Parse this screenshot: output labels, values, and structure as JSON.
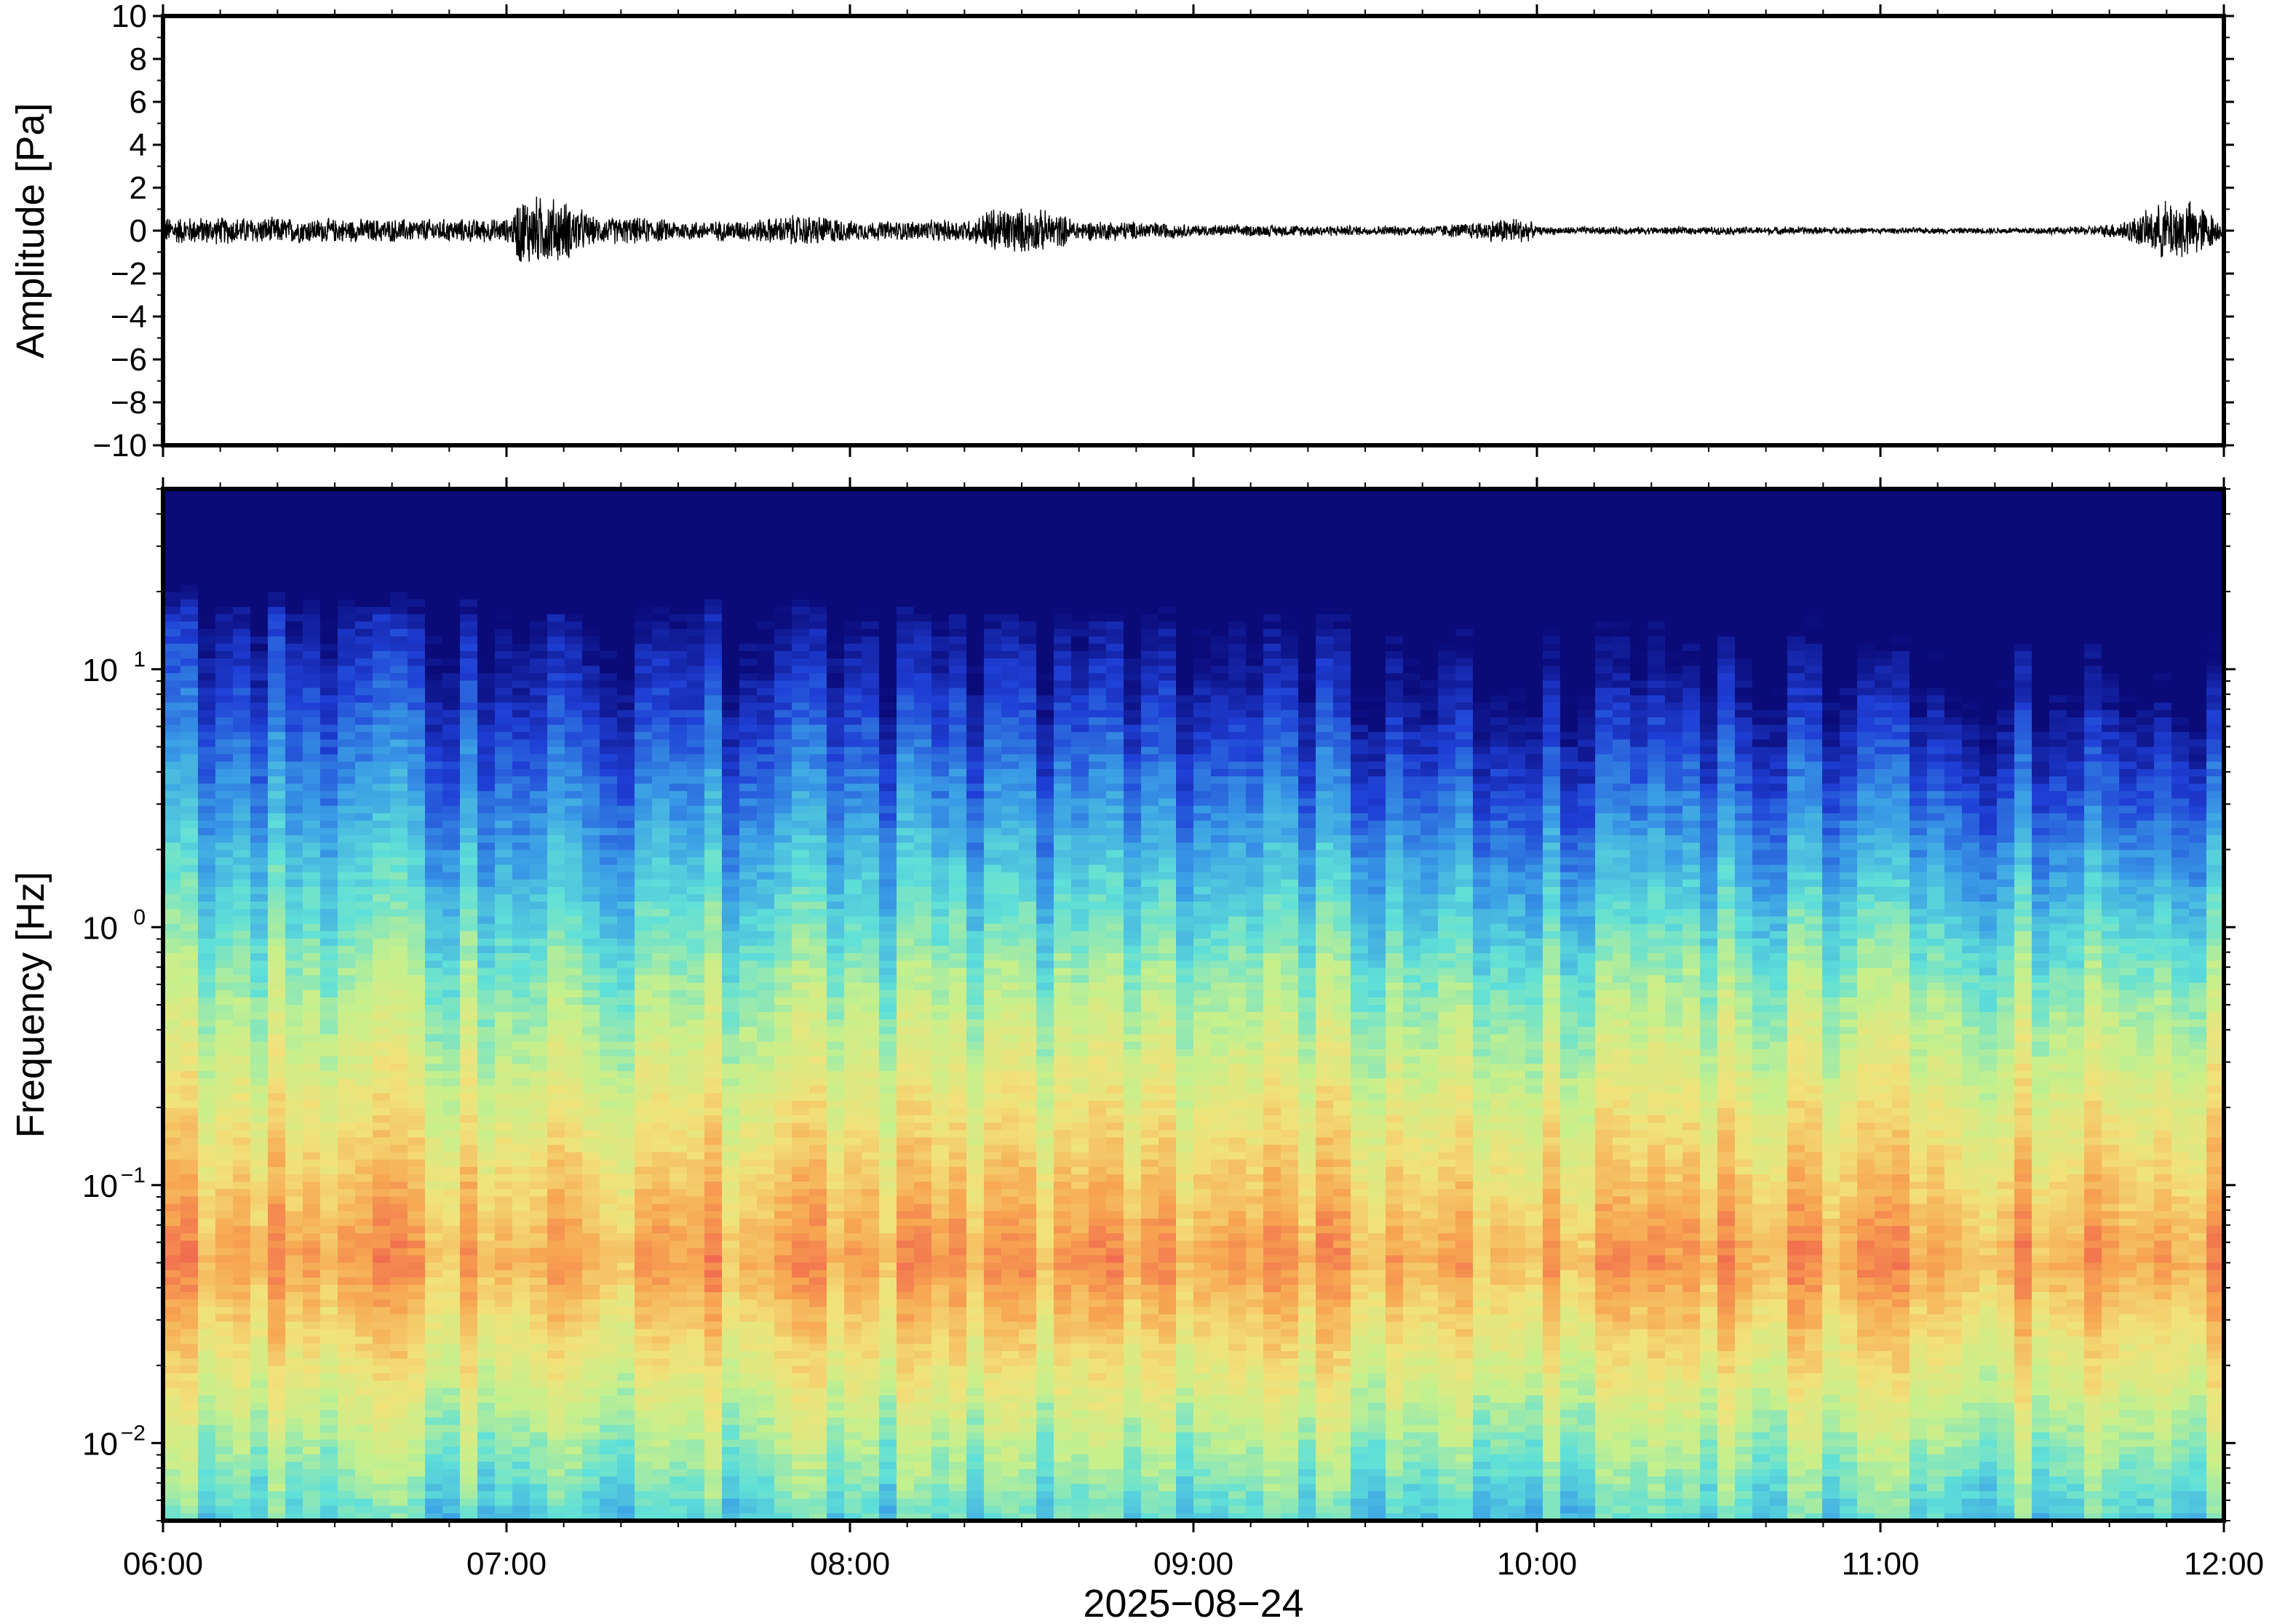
{
  "chart_data": [
    {
      "name": "waveform",
      "type": "line",
      "title": "",
      "ylabel": "Amplitude [Pa]",
      "xlabel": "",
      "ylim": [
        -10,
        10
      ],
      "xlim": [
        "06:00",
        "12:00"
      ],
      "yticks": [
        10,
        8,
        6,
        4,
        2,
        0,
        -2,
        -4,
        -6,
        -8,
        -10
      ],
      "ytick_labels": [
        "10",
        "8",
        "6",
        "4",
        "2",
        "0",
        "−2",
        "−4",
        "−6",
        "−8",
        "−10"
      ],
      "envelope": {
        "x": [
          "06:00",
          "06:30",
          "07:00",
          "07:02",
          "07:15",
          "07:30",
          "07:50",
          "08:00",
          "08:20",
          "08:24",
          "08:40",
          "09:00",
          "09:30",
          "09:55",
          "10:00",
          "10:30",
          "11:00",
          "11:30",
          "11:50",
          "12:00"
        ],
        "amplitude": [
          0.7,
          0.6,
          0.6,
          1.8,
          0.7,
          0.5,
          0.8,
          0.5,
          0.6,
          1.2,
          0.5,
          0.3,
          0.25,
          0.7,
          0.2,
          0.2,
          0.15,
          0.2,
          1.6,
          0.15
        ]
      },
      "grid": false
    },
    {
      "name": "spectrogram",
      "type": "heatmap",
      "title": "",
      "ylabel": "Frequency [Hz]",
      "xlabel": "2025−08−24",
      "yscale": "log",
      "ylim": [
        0.005,
        50
      ],
      "xlim": [
        "06:00",
        "12:00"
      ],
      "yticks": [
        0.01,
        0.1,
        1,
        10
      ],
      "ytick_mantissa": [
        "10",
        "10",
        "10",
        "10"
      ],
      "ytick_exponent": [
        "−2",
        "−1",
        "0",
        "1"
      ],
      "xticks": [
        "06:00",
        "07:00",
        "08:00",
        "09:00",
        "10:00",
        "11:00",
        "12:00"
      ],
      "colormap": [
        "#0a0a78",
        "#1f3fd6",
        "#3a9de6",
        "#5fe0d8",
        "#c6f08c",
        "#f2e27a",
        "#f7a551",
        "#ef5a4e"
      ],
      "grid": false
    }
  ]
}
